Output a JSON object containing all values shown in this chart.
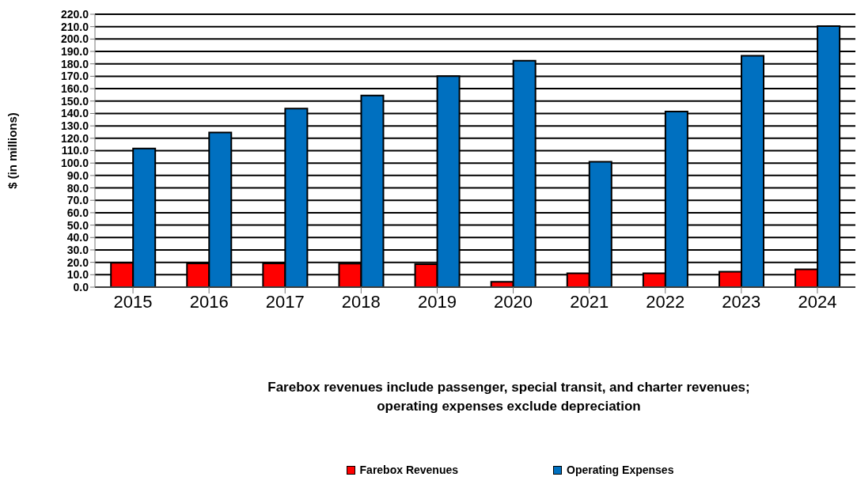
{
  "chart_data": {
    "type": "bar",
    "ylabel": "$ (in millions)",
    "annotations": [
      "Farebox revenues include passenger, special transit, and charter revenues; operating expenses exclude depreciation"
    ],
    "categories": [
      "2015",
      "2016",
      "2017",
      "2018",
      "2019",
      "2020",
      "2021",
      "2022",
      "2023",
      "2024"
    ],
    "series": [
      {
        "name": "Farebox Revenues",
        "color": "#ff0000",
        "values": [
          19.6,
          19.1,
          19.1,
          19.0,
          18.5,
          4.3,
          11.1,
          11.2,
          12.5,
          14.4
        ]
      },
      {
        "name": "Operating Expenses",
        "color": "#0070c0",
        "values": [
          111.8,
          124.6,
          143.9,
          154.5,
          170.1,
          182.5,
          101.1,
          141.5,
          186.6,
          210.5
        ]
      }
    ],
    "ylim": [
      0,
      220
    ],
    "yticks": [
      {
        "value": 0,
        "label": "0.0"
      },
      {
        "value": 10,
        "label": "10.0"
      },
      {
        "value": 20,
        "label": "20.0"
      },
      {
        "value": 30,
        "label": "30.0"
      },
      {
        "value": 40,
        "label": "40.0"
      },
      {
        "value": 50,
        "label": "50.0"
      },
      {
        "value": 60,
        "label": "60.0"
      },
      {
        "value": 70,
        "label": "70.0"
      },
      {
        "value": 80,
        "label": "80.0"
      },
      {
        "value": 90,
        "label": "90.0"
      },
      {
        "value": 100,
        "label": "100.0"
      },
      {
        "value": 110,
        "label": "110.0"
      },
      {
        "value": 120,
        "label": "120.0"
      },
      {
        "value": 130,
        "label": "130.0"
      },
      {
        "value": 140,
        "label": "140.0"
      },
      {
        "value": 150,
        "label": "150.0"
      },
      {
        "value": 160,
        "label": "160.0"
      },
      {
        "value": 170,
        "label": "170.0"
      },
      {
        "value": 180,
        "label": "180.0"
      },
      {
        "value": 190,
        "label": "190.0"
      },
      {
        "value": 200,
        "label": "200.0"
      },
      {
        "value": 210,
        "label": "210.0"
      },
      {
        "value": 220,
        "label": "220.0"
      }
    ],
    "grid": "y",
    "legend": "bottom"
  }
}
